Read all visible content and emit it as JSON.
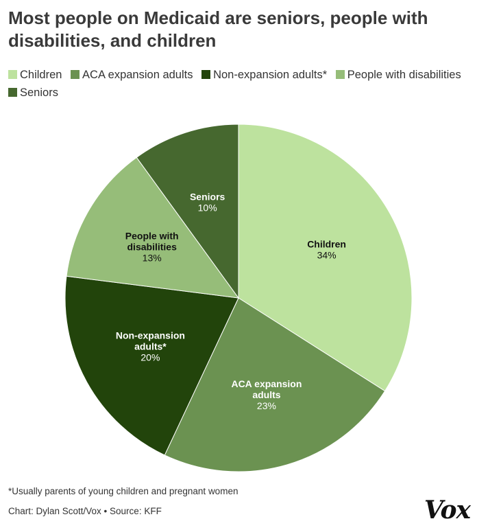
{
  "title": "Most people on Medicaid are seniors, people with disabilities, and children",
  "chart_data": {
    "type": "pie",
    "slices": [
      {
        "label": "Children",
        "value": 34,
        "value_label": "34%",
        "color": "#bde29e",
        "text_color": "#111111",
        "label_lines": [
          "Children"
        ]
      },
      {
        "label": "ACA expansion adults",
        "value": 23,
        "value_label": "23%",
        "color": "#6b9251",
        "text_color": "#ffffff",
        "label_lines": [
          "ACA expansion",
          "adults"
        ]
      },
      {
        "label": "Non-expansion adults*",
        "value": 20,
        "value_label": "20%",
        "color": "#22440b",
        "text_color": "#ffffff",
        "label_lines": [
          "Non-expansion",
          "adults*"
        ]
      },
      {
        "label": "People with disabilities",
        "value": 13,
        "value_label": "13%",
        "color": "#96bd79",
        "text_color": "#111111",
        "label_lines": [
          "People with",
          "disabilities"
        ]
      },
      {
        "label": "Seniors",
        "value": 10,
        "value_label": "10%",
        "color": "#46682f",
        "text_color": "#ffffff",
        "label_lines": [
          "Seniors"
        ]
      }
    ],
    "legend": [
      {
        "label": "Children",
        "color": "#bde29e"
      },
      {
        "label": "ACA expansion adults",
        "color": "#6b9251"
      },
      {
        "label": "Non-expansion adults*",
        "color": "#22440b"
      },
      {
        "label": "People with disabilities",
        "color": "#96bd79"
      },
      {
        "label": "Seniors",
        "color": "#46682f"
      }
    ],
    "legend_placement": "top",
    "start": "12 o'clock",
    "direction": "clockwise"
  },
  "footnote": "*Usually parents of young children and pregnant women",
  "credit": "Chart: Dylan Scott/Vox • Source: KFF",
  "logo_text": "Vox"
}
